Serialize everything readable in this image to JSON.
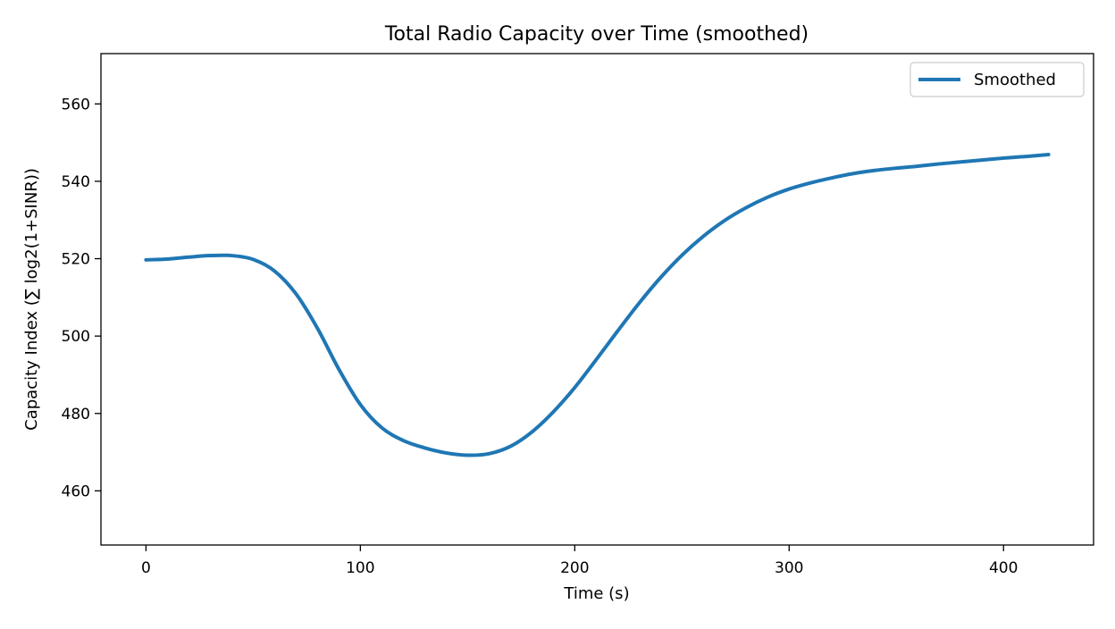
{
  "chart_data": {
    "type": "line",
    "title": "Total Radio Capacity over Time (smoothed)",
    "xlabel": "Time (s)",
    "ylabel": "Capacity Index (∑ log2(1+SINR))",
    "xlim": [
      -21,
      442
    ],
    "ylim": [
      446,
      573
    ],
    "xticks": [
      0,
      100,
      200,
      300,
      400
    ],
    "yticks": [
      460,
      480,
      500,
      520,
      540,
      560
    ],
    "grid": false,
    "legend_position": "top-right",
    "series": [
      {
        "name": "Smoothed",
        "color": "#1f77b4",
        "x": [
          0,
          10,
          20,
          30,
          40,
          50,
          60,
          70,
          80,
          90,
          100,
          110,
          120,
          130,
          140,
          150,
          160,
          170,
          180,
          190,
          200,
          210,
          220,
          230,
          240,
          250,
          260,
          270,
          280,
          290,
          300,
          310,
          320,
          330,
          340,
          350,
          360,
          370,
          380,
          390,
          400,
          410,
          421
        ],
        "y": [
          519.7,
          519.9,
          520.4,
          520.8,
          520.8,
          519.8,
          516.8,
          510.9,
          502.0,
          491.4,
          482.3,
          476.3,
          473.0,
          471.1,
          469.8,
          469.2,
          469.6,
          471.5,
          475.2,
          480.4,
          486.7,
          493.9,
          501.3,
          508.5,
          515.1,
          520.9,
          525.8,
          529.9,
          533.2,
          535.9,
          538.0,
          539.6,
          540.9,
          542.0,
          542.8,
          543.4,
          543.9,
          544.5,
          545.0,
          545.5,
          546.0,
          546.4,
          546.9
        ]
      }
    ]
  }
}
